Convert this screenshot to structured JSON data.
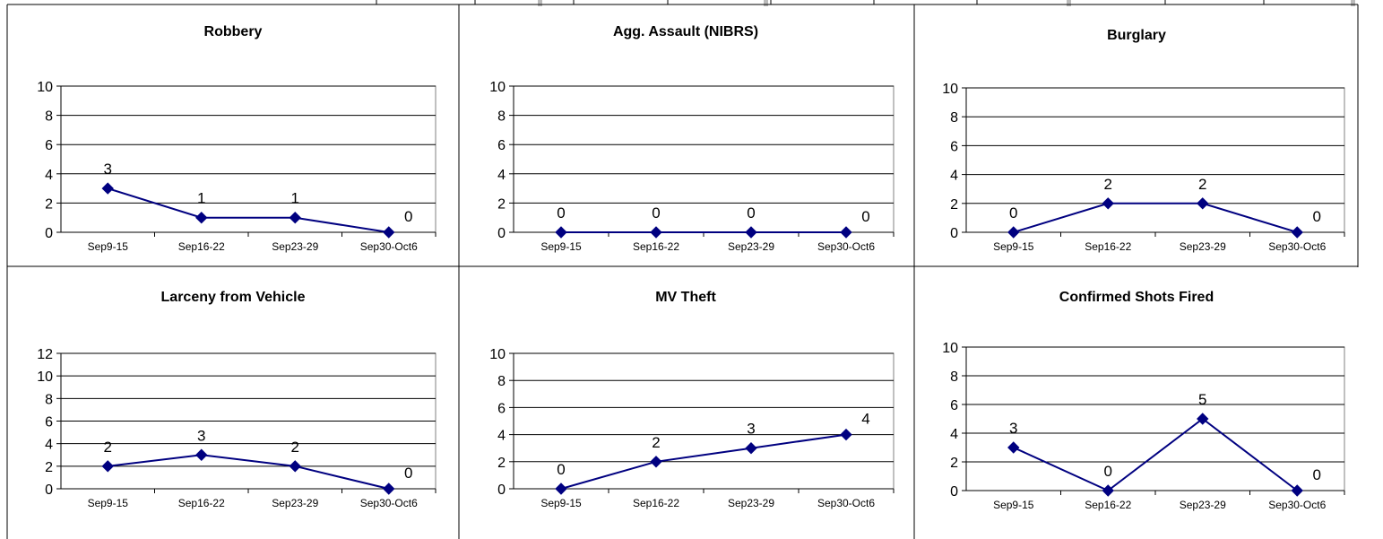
{
  "chart_data": [
    {
      "type": "line",
      "title": "Robbery",
      "categories": [
        "Sep9-15",
        "Sep16-22",
        "Sep23-29",
        "Sep30-Oct6"
      ],
      "series": [
        {
          "values": [
            3,
            1,
            1,
            0
          ],
          "color": "#000080"
        }
      ],
      "data_labels": [
        "3",
        "1",
        "1",
        "0"
      ],
      "ylim": [
        0,
        10
      ],
      "yticks": [
        "0",
        "2",
        "4",
        "6",
        "8",
        "10"
      ],
      "grid": true,
      "legend": "none"
    },
    {
      "type": "line",
      "title": "Agg. Assault (NIBRS)",
      "categories": [
        "Sep9-15",
        "Sep16-22",
        "Sep23-29",
        "Sep30-Oct6"
      ],
      "series": [
        {
          "values": [
            0,
            0,
            0,
            0
          ],
          "color": "#000080"
        }
      ],
      "data_labels": [
        "0",
        "0",
        "0",
        "0"
      ],
      "ylim": [
        0,
        10
      ],
      "yticks": [
        "0",
        "2",
        "4",
        "6",
        "8",
        "10"
      ],
      "grid": true,
      "legend": "none"
    },
    {
      "type": "line",
      "title": "Burglary",
      "categories": [
        "Sep9-15",
        "Sep16-22",
        "Sep23-29",
        "Sep30-Oct6"
      ],
      "series": [
        {
          "values": [
            0,
            2,
            2,
            0
          ],
          "color": "#000080"
        }
      ],
      "data_labels": [
        "0",
        "2",
        "2",
        "0"
      ],
      "ylim": [
        0,
        10
      ],
      "yticks": [
        "0",
        "2",
        "4",
        "6",
        "8",
        "10"
      ],
      "grid": true,
      "legend": "none"
    },
    {
      "type": "line",
      "title": "Larceny from Vehicle",
      "categories": [
        "Sep9-15",
        "Sep16-22",
        "Sep23-29",
        "Sep30-Oct6"
      ],
      "series": [
        {
          "values": [
            2,
            3,
            2,
            0
          ],
          "color": "#000080"
        }
      ],
      "data_labels": [
        "2",
        "3",
        "2",
        "0"
      ],
      "ylim": [
        0,
        12
      ],
      "yticks": [
        "0",
        "2",
        "4",
        "6",
        "8",
        "10",
        "12"
      ],
      "grid": true,
      "legend": "none"
    },
    {
      "type": "line",
      "title": "MV Theft",
      "categories": [
        "Sep9-15",
        "Sep16-22",
        "Sep23-29",
        "Sep30-Oct6"
      ],
      "series": [
        {
          "values": [
            0,
            2,
            3,
            4
          ],
          "color": "#000080"
        }
      ],
      "data_labels": [
        "0",
        "2",
        "3",
        "4"
      ],
      "ylim": [
        0,
        10
      ],
      "yticks": [
        "0",
        "2",
        "4",
        "6",
        "8",
        "10"
      ],
      "grid": true,
      "legend": "none"
    },
    {
      "type": "line",
      "title": "Confirmed Shots Fired",
      "categories": [
        "Sep9-15",
        "Sep16-22",
        "Sep23-29",
        "Sep30-Oct6"
      ],
      "series": [
        {
          "values": [
            3,
            0,
            5,
            0
          ],
          "color": "#000080"
        }
      ],
      "data_labels": [
        "3",
        "0",
        "5",
        "0"
      ],
      "ylim": [
        0,
        10
      ],
      "yticks": [
        "0",
        "2",
        "4",
        "6",
        "8",
        "10"
      ],
      "grid": true,
      "legend": "none"
    }
  ]
}
